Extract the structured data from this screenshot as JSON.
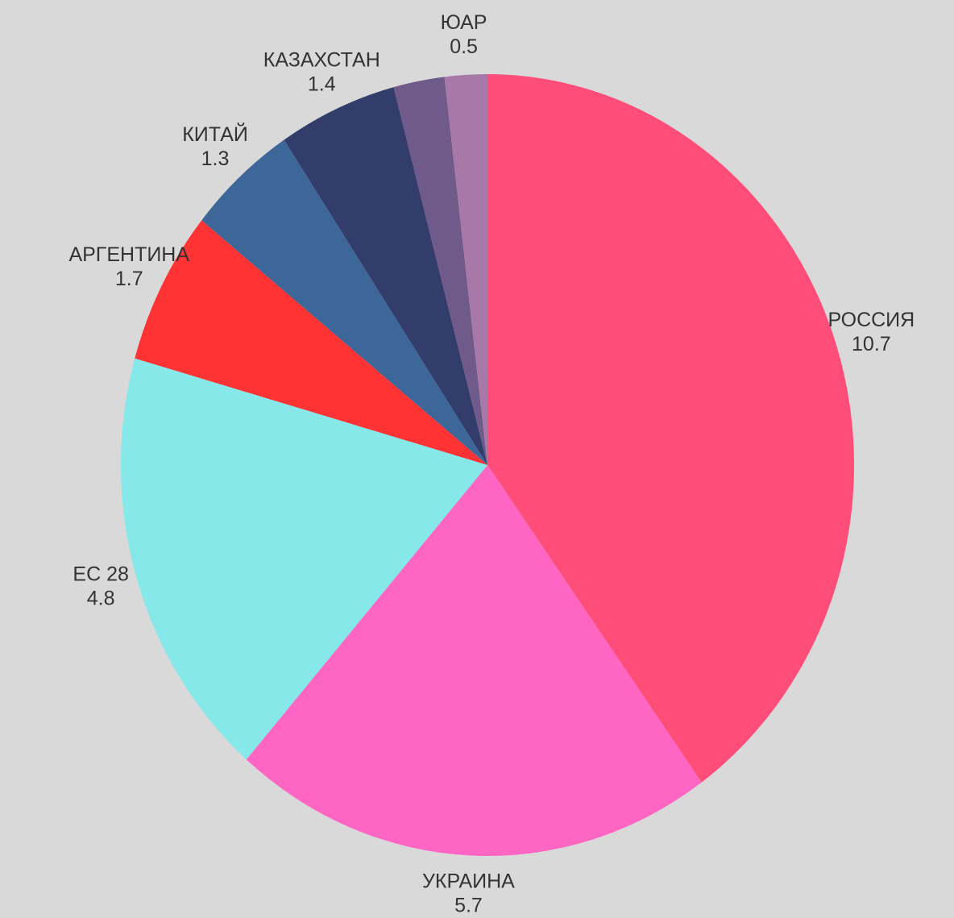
{
  "chart_data": {
    "type": "pie",
    "categories": [
      "РОССИЯ",
      "УКРАИНА",
      "ЕС 28",
      "АРГЕНТИНА",
      "КИТАЙ",
      "КАЗАХСТАН",
      null,
      "ЮАР"
    ],
    "values": [
      10.7,
      5.7,
      4.8,
      1.7,
      1.3,
      1.4,
      0.6,
      0.5
    ],
    "colors": [
      "#ff4d7a",
      "#ff66c4",
      "#86e8e8",
      "#ff3333",
      "#3d6699",
      "#333d6b",
      "#705a8a",
      "#a879a8"
    ]
  }
}
